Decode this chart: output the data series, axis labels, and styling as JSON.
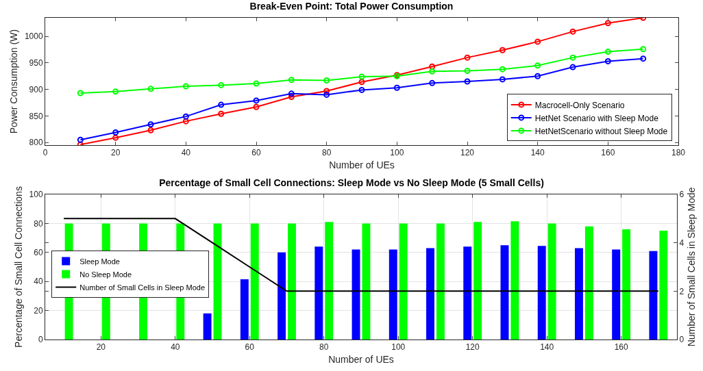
{
  "chart_data": [
    {
      "type": "line",
      "title": "Break-Even Point: Total Power Consumption",
      "xlabel": "Number of UEs",
      "ylabel": "Power Consumption (W)",
      "x": [
        10,
        20,
        30,
        40,
        50,
        60,
        70,
        80,
        90,
        100,
        110,
        120,
        130,
        140,
        150,
        160,
        170
      ],
      "series": [
        {
          "name": "Macrocell-Only Scenario",
          "color": "#ff0000",
          "values": [
            796,
            809,
            823,
            840,
            854,
            867,
            886,
            897,
            914,
            927,
            943,
            960,
            974,
            990,
            1009,
            1025,
            1035
          ]
        },
        {
          "name": "HetNet Scenario with Sleep Mode",
          "color": "#0000ff",
          "values": [
            805,
            819,
            834,
            849,
            871,
            879,
            892,
            890,
            899,
            903,
            912,
            915,
            919,
            925,
            942,
            953,
            958
          ]
        },
        {
          "name": "HetNetScenario without Sleep Mode",
          "color": "#00ff00",
          "values": [
            893,
            896,
            901,
            906,
            908,
            911,
            918,
            917,
            924,
            925,
            934,
            935,
            938,
            945,
            960,
            971,
            976
          ]
        }
      ],
      "xlim": [
        0,
        180
      ],
      "xticks": [
        0,
        20,
        40,
        60,
        80,
        100,
        120,
        140,
        160,
        180
      ],
      "ylim": [
        795,
        1035
      ],
      "yticks": [
        800,
        850,
        900,
        950,
        1000
      ],
      "grid": false,
      "legend": "bottom right",
      "marker": "circle",
      "line_style": "solid"
    },
    {
      "type": "bar",
      "title": "Percentage of Small Cell Connections: Sleep Mode vs No Sleep Mode (5 Small Cells)",
      "xlabel": "Number of UEs",
      "ylabel": "Percentage of Small Cell Connections",
      "y2label": "Number of Small Cells in Sleep Mode",
      "x": [
        10,
        20,
        30,
        40,
        50,
        60,
        70,
        80,
        90,
        100,
        110,
        120,
        130,
        140,
        150,
        160,
        170
      ],
      "series": [
        {
          "name": "Sleep Mode",
          "color": "#0000ff",
          "values": [
            0,
            0,
            0,
            0,
            18,
            41.5,
            60,
            64,
            62,
            62,
            63,
            64,
            65,
            64.5,
            63,
            62,
            61
          ]
        },
        {
          "name": "No Sleep Mode",
          "color": "#00ff00",
          "values": [
            80,
            80,
            80,
            80,
            80,
            80,
            80,
            81,
            80,
            80,
            80,
            81,
            81.5,
            80,
            78,
            76,
            75
          ]
        },
        {
          "name": "Number of Small Cells in Sleep Mode",
          "type": "line",
          "axis": "y2",
          "color": "#000000",
          "values": [
            5,
            5,
            5,
            5,
            4,
            3,
            2,
            2,
            2,
            2,
            2,
            2,
            2,
            2,
            2,
            2,
            2
          ]
        }
      ],
      "xlim": [
        5,
        175
      ],
      "xticks": [
        20,
        40,
        60,
        80,
        100,
        120,
        140,
        160
      ],
      "ylim": [
        0,
        100
      ],
      "yticks": [
        0,
        20,
        40,
        60,
        80,
        100
      ],
      "y2lim": [
        0,
        6
      ],
      "y2ticks": [
        0,
        2,
        4,
        6
      ],
      "grid": true,
      "legend": "left"
    }
  ]
}
